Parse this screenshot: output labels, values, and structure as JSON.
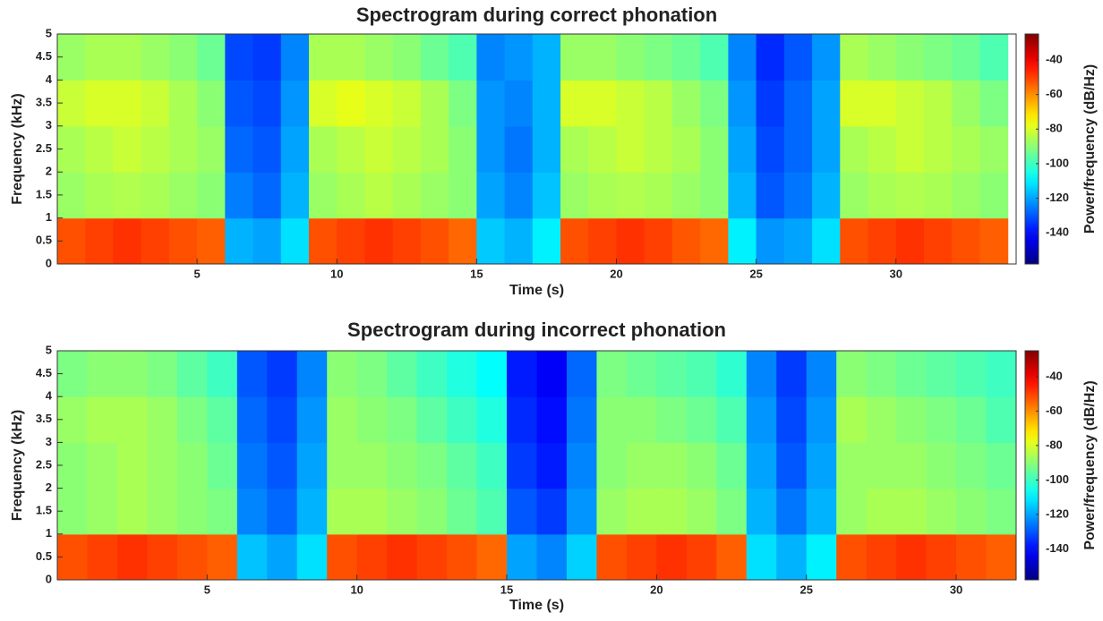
{
  "chart_data": [
    {
      "type": "heatmap",
      "title": "Spectrogram during correct phonation",
      "xlabel": "Time (s)",
      "ylabel": "Frequency (kHz)",
      "colorbar_label": "Power/frequency (dB/Hz)",
      "colormap": "jet",
      "xlim": [
        0,
        34.3
      ],
      "ylim": [
        0,
        5
      ],
      "xticks": [
        5,
        10,
        15,
        20,
        25,
        30
      ],
      "yticks": [
        0,
        0.5,
        1,
        1.5,
        2,
        2.5,
        3,
        3.5,
        4,
        4.5,
        5
      ],
      "clim": [
        -158,
        -25
      ],
      "cticks": [
        -140,
        -120,
        -100,
        -80,
        -60,
        -40
      ],
      "x_edges": [
        0,
        1,
        2,
        3,
        4,
        5,
        6,
        7,
        8,
        9,
        10,
        11,
        12,
        13,
        14,
        15,
        16,
        17,
        18,
        19,
        20,
        21,
        22,
        23,
        24,
        25,
        26,
        27,
        28,
        29,
        30,
        31,
        32,
        33,
        34
      ],
      "y_edges": [
        0,
        1,
        2,
        3,
        4,
        5
      ],
      "z": [
        [
          -52,
          -50,
          -48,
          -50,
          -52,
          -54,
          -118,
          -120,
          -112,
          -52,
          -50,
          -48,
          -50,
          -52,
          -55,
          -115,
          -118,
          -110,
          -52,
          -50,
          -48,
          -50,
          -53,
          -55,
          -110,
          -122,
          -120,
          -112,
          -52,
          -50,
          -48,
          -50,
          -52,
          -54
        ],
        [
          -88,
          -86,
          -85,
          -86,
          -88,
          -90,
          -125,
          -128,
          -118,
          -88,
          -86,
          -84,
          -86,
          -88,
          -90,
          -120,
          -124,
          -116,
          -88,
          -86,
          -85,
          -86,
          -88,
          -90,
          -118,
          -130,
          -126,
          -118,
          -88,
          -86,
          -85,
          -86,
          -88,
          -90
        ],
        [
          -86,
          -84,
          -82,
          -84,
          -86,
          -88,
          -128,
          -130,
          -120,
          -86,
          -84,
          -82,
          -84,
          -86,
          -90,
          -122,
          -126,
          -118,
          -86,
          -84,
          -82,
          -84,
          -86,
          -90,
          -120,
          -132,
          -128,
          -120,
          -86,
          -84,
          -82,
          -84,
          -86,
          -88
        ],
        [
          -82,
          -80,
          -80,
          -82,
          -86,
          -90,
          -130,
          -132,
          -122,
          -80,
          -78,
          -80,
          -82,
          -86,
          -92,
          -122,
          -124,
          -118,
          -80,
          -80,
          -82,
          -84,
          -88,
          -92,
          -122,
          -134,
          -128,
          -120,
          -80,
          -80,
          -82,
          -84,
          -88,
          -92
        ],
        [
          -88,
          -86,
          -86,
          -88,
          -90,
          -94,
          -132,
          -134,
          -124,
          -86,
          -86,
          -88,
          -90,
          -94,
          -98,
          -124,
          -122,
          -118,
          -88,
          -88,
          -90,
          -92,
          -94,
          -98,
          -124,
          -136,
          -130,
          -122,
          -86,
          -88,
          -90,
          -92,
          -94,
          -98
        ]
      ]
    },
    {
      "type": "heatmap",
      "title": "Spectrogram during incorrect phonation",
      "xlabel": "Time (s)",
      "ylabel": "Frequency (kHz)",
      "colorbar_label": "Power/frequency (dB/Hz)",
      "colormap": "jet",
      "xlim": [
        0,
        32
      ],
      "ylim": [
        0,
        5
      ],
      "xticks": [
        5,
        10,
        15,
        20,
        25,
        30
      ],
      "yticks": [
        0,
        0.5,
        1,
        1.5,
        2,
        2.5,
        3,
        3.5,
        4,
        4.5,
        5
      ],
      "clim": [
        -158,
        -25
      ],
      "cticks": [
        -140,
        -120,
        -100,
        -80,
        -60,
        -40
      ],
      "x_edges": [
        0,
        1,
        2,
        3,
        4,
        5,
        6,
        7,
        8,
        9,
        10,
        11,
        12,
        13,
        14,
        15,
        16,
        17,
        18,
        19,
        20,
        21,
        22,
        23,
        24,
        25,
        26,
        27,
        28,
        29,
        30,
        31,
        32
      ],
      "y_edges": [
        0,
        1,
        2,
        3,
        4,
        5
      ],
      "z": [
        [
          -52,
          -50,
          -48,
          -50,
          -52,
          -54,
          -116,
          -120,
          -112,
          -52,
          -50,
          -48,
          -50,
          -52,
          -55,
          -120,
          -124,
          -114,
          -52,
          -50,
          -48,
          -50,
          -54,
          -112,
          -118,
          -110,
          -52,
          -50,
          -48,
          -50,
          -52,
          -54
        ],
        [
          -90,
          -88,
          -86,
          -88,
          -90,
          -92,
          -124,
          -128,
          -118,
          -86,
          -86,
          -88,
          -90,
          -94,
          -98,
          -130,
          -134,
          -122,
          -88,
          -86,
          -86,
          -88,
          -92,
          -118,
          -126,
          -118,
          -88,
          -86,
          -86,
          -88,
          -90,
          -92
        ],
        [
          -90,
          -88,
          -86,
          -88,
          -90,
          -94,
          -126,
          -130,
          -120,
          -88,
          -88,
          -90,
          -92,
          -96,
          -100,
          -134,
          -138,
          -124,
          -90,
          -88,
          -88,
          -90,
          -94,
          -120,
          -130,
          -120,
          -88,
          -88,
          -88,
          -90,
          -92,
          -94
        ],
        [
          -88,
          -86,
          -86,
          -88,
          -92,
          -96,
          -128,
          -132,
          -122,
          -88,
          -90,
          -92,
          -96,
          -100,
          -104,
          -136,
          -140,
          -126,
          -90,
          -90,
          -92,
          -94,
          -98,
          -122,
          -132,
          -122,
          -86,
          -88,
          -90,
          -92,
          -94,
          -98
        ],
        [
          -92,
          -90,
          -90,
          -92,
          -96,
          -100,
          -130,
          -134,
          -124,
          -90,
          -92,
          -96,
          -100,
          -104,
          -108,
          -138,
          -142,
          -128,
          -92,
          -94,
          -96,
          -98,
          -102,
          -124,
          -134,
          -124,
          -90,
          -92,
          -94,
          -96,
          -98,
          -100
        ]
      ]
    }
  ]
}
